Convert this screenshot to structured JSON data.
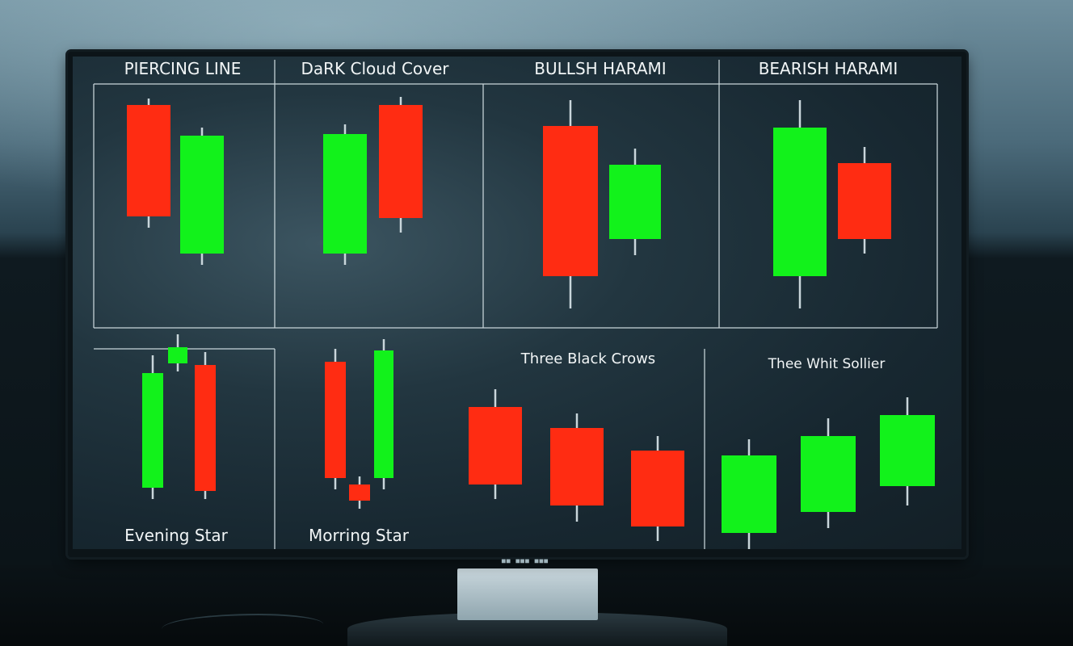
{
  "scene": {
    "monitor_brand": "■■ ■■■ ■■■"
  },
  "colors": {
    "bull": "#12f21b",
    "bear": "#ff2c12",
    "wick": "#c9d6db",
    "grid": "#c6d3d8"
  },
  "panels": [
    {
      "title": "PIERCING LINE",
      "pattern": "piercing-line"
    },
    {
      "title": "DaRK Cloud Cover",
      "pattern": "dark-cloud-cover"
    },
    {
      "title": "BULLSH HARAMI",
      "pattern": "bullish-harami"
    },
    {
      "title": "BEARISH HARAMI",
      "pattern": "bearish-harami"
    },
    {
      "title": "Evening Star",
      "pattern": "evening-star"
    },
    {
      "title": "Morring Star",
      "pattern": "morning-star"
    },
    {
      "title": "Three Black Crows",
      "pattern": "three-black-crows"
    },
    {
      "title": "Thee Whit Sollier",
      "pattern": "three-white-soldiers"
    }
  ]
}
